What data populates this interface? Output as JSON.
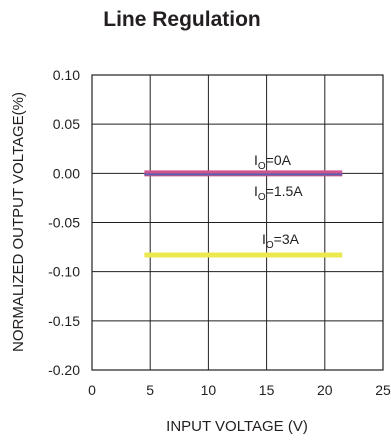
{
  "chart_data": {
    "type": "line",
    "title": "Line Regulation",
    "xlabel": "INPUT VOLTAGE (V)",
    "ylabel": "NORMALIZED OUTPUT VOLTAGE(%)",
    "xlim": [
      0,
      25
    ],
    "ylim": [
      -0.2,
      0.1
    ],
    "x_ticks": [
      "0",
      "5",
      "10",
      "15",
      "20",
      "25"
    ],
    "y_ticks": [
      "0.10",
      "0.05",
      "0.00",
      "-0.05",
      "-0.10",
      "-0.15",
      "-0.20"
    ],
    "grid": true,
    "series": [
      {
        "name": "IO=0A",
        "name_main": "I",
        "name_sub": "O",
        "name_rest": "=0A",
        "color": "#d0548f",
        "x": [
          4.5,
          21.5
        ],
        "y": [
          0.0,
          0.0
        ]
      },
      {
        "name": "IO=1.5A",
        "name_main": "I",
        "name_sub": "O",
        "name_rest": "=1.5A",
        "color": "#5b5fae",
        "x": [
          4.5,
          21.5
        ],
        "y": [
          -0.001,
          -0.001
        ]
      },
      {
        "name": "IO=3A",
        "name_main": "I",
        "name_sub": "O",
        "name_rest": "=3A",
        "color": "#ece84f",
        "x": [
          4.5,
          21.5
        ],
        "y": [
          -0.083,
          -0.083
        ]
      }
    ]
  }
}
